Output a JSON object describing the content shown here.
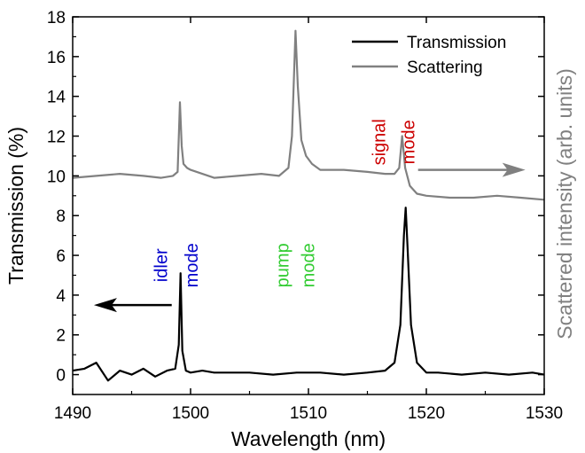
{
  "chart_data": {
    "type": "line",
    "xlabel": "Wavelength (nm)",
    "ylabel_left": "Transmission (%)",
    "ylabel_right": "Scattered intensity (arb. units)",
    "xlim": [
      1490,
      1530
    ],
    "ylim": [
      -1,
      18
    ],
    "x_ticks": [
      1490,
      1500,
      1510,
      1520,
      1530
    ],
    "y_ticks": [
      0,
      2,
      4,
      6,
      8,
      10,
      12,
      14,
      16,
      18
    ],
    "grid": false,
    "legend_position": "top-right",
    "legend": [
      {
        "label": "Transmission",
        "color": "#000000"
      },
      {
        "label": "Scattering",
        "color": "#808080"
      }
    ],
    "series": [
      {
        "name": "Transmission",
        "color": "#000000",
        "axis": "left",
        "x": [
          1490,
          1491,
          1492,
          1493,
          1494,
          1495,
          1496,
          1497,
          1498,
          1498.7,
          1499.0,
          1499.15,
          1499.3,
          1499.6,
          1500,
          1501,
          1502,
          1503,
          1505,
          1507,
          1509,
          1511,
          1513,
          1515,
          1516.5,
          1517.3,
          1517.8,
          1518.1,
          1518.25,
          1518.4,
          1518.7,
          1519.2,
          1520,
          1521,
          1523,
          1525,
          1527,
          1529,
          1530
        ],
        "y": [
          0.2,
          0.3,
          0.6,
          -0.3,
          0.2,
          0.0,
          0.3,
          -0.1,
          0.2,
          0.3,
          1.5,
          5.1,
          1.2,
          0.2,
          0.1,
          0.2,
          0.1,
          0.1,
          0.1,
          0.0,
          0.1,
          0.1,
          0.0,
          0.1,
          0.2,
          0.6,
          2.5,
          7.0,
          8.4,
          6.5,
          2.5,
          0.6,
          0.1,
          0.1,
          0.0,
          0.1,
          0.0,
          0.1,
          0.0
        ]
      },
      {
        "name": "Scattering",
        "color": "#808080",
        "axis": "right",
        "x": [
          1490,
          1492,
          1494,
          1496,
          1497.5,
          1498.5,
          1498.9,
          1499.1,
          1499.25,
          1499.4,
          1499.7,
          1500,
          1501,
          1502,
          1504,
          1506,
          1507.5,
          1508.3,
          1508.6,
          1508.9,
          1509.1,
          1509.4,
          1509.8,
          1510.3,
          1511,
          1513,
          1515,
          1516.5,
          1517.3,
          1517.7,
          1517.95,
          1518.2,
          1518.6,
          1519.2,
          1520,
          1522,
          1524,
          1526,
          1528,
          1530
        ],
        "y": [
          9.9,
          10.0,
          10.1,
          10.0,
          9.9,
          10.0,
          10.2,
          13.7,
          11.5,
          10.6,
          10.4,
          10.3,
          10.1,
          9.9,
          10.0,
          10.1,
          10.0,
          10.4,
          12.0,
          17.3,
          14.5,
          11.8,
          11.0,
          10.6,
          10.3,
          10.3,
          10.2,
          10.1,
          10.1,
          10.4,
          12.0,
          10.4,
          9.5,
          9.1,
          9.0,
          8.9,
          8.9,
          9.0,
          8.9,
          8.8
        ]
      }
    ],
    "annotations": [
      {
        "text": "idler",
        "color": "#0000cc",
        "x": 1498.0,
        "y": 5.5
      },
      {
        "text": "mode",
        "color": "#0000cc",
        "x": 1500.6,
        "y": 5.5
      },
      {
        "text": "pump",
        "color": "#33cc33",
        "x": 1508.3,
        "y": 5.5
      },
      {
        "text": "mode",
        "color": "#33cc33",
        "x": 1510.5,
        "y": 5.5
      },
      {
        "text": "signal",
        "color": "#cc0000",
        "x": 1516.5,
        "y": 11.7
      },
      {
        "text": "mode",
        "color": "#cc0000",
        "x": 1519.0,
        "y": 11.7
      }
    ],
    "arrows": [
      {
        "direction": "left",
        "color": "#000000",
        "from": [
          1498.4,
          3.5
        ],
        "to": [
          1491.8,
          3.5
        ]
      },
      {
        "direction": "right",
        "color": "#808080",
        "from": [
          1519.3,
          10.3
        ],
        "to": [
          1528.4,
          10.3
        ]
      }
    ]
  }
}
